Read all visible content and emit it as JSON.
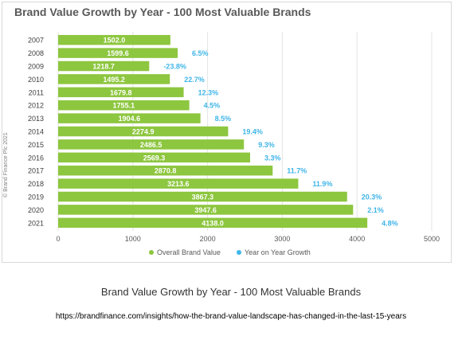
{
  "chart_data": {
    "type": "bar",
    "orientation": "horizontal",
    "title": "Brand Value Growth by Year - 100 Most Valuable Brands",
    "categories": [
      "2007",
      "2008",
      "2009",
      "2010",
      "2011",
      "2012",
      "2013",
      "2014",
      "2015",
      "2016",
      "2017",
      "2018",
      "2019",
      "2020",
      "2021"
    ],
    "series": [
      {
        "name": "Overall Brand Value",
        "color": "#8dc63f",
        "values": [
          1502.0,
          1599.6,
          1218.7,
          1495.2,
          1679.8,
          1755.1,
          1904.6,
          2274.9,
          2486.5,
          2569.3,
          2870.8,
          3213.6,
          3867.3,
          3947.6,
          4138.0
        ],
        "value_labels": [
          "1502.0",
          "1599.6",
          "1218.7",
          "1495.2",
          "1679.8",
          "1755.1",
          "1904.6",
          "2274.9",
          "2486.5",
          "2569.3",
          "2870.8",
          "3213.6",
          "3867.3",
          "3947.6",
          "4138.0"
        ]
      },
      {
        "name": "Year on Year Growth",
        "color": "#3fb5e8",
        "values": [
          null,
          6.5,
          -23.8,
          22.7,
          12.3,
          4.5,
          8.5,
          19.4,
          9.3,
          3.3,
          11.7,
          11.9,
          20.3,
          2.1,
          4.8
        ],
        "value_labels": [
          "",
          "6.5%",
          "-23.8%",
          "22.7%",
          "12.3%",
          "4.5%",
          "8.5%",
          "19.4%",
          "9.3%",
          "3.3%",
          "11.7%",
          "11.9%",
          "20.3%",
          "2.1%",
          "4.8%"
        ]
      }
    ],
    "x_ticks": [
      0,
      1000,
      2000,
      3000,
      4000,
      5000
    ],
    "x_tick_labels": [
      "0",
      "1000",
      "2000",
      "3000",
      "4000",
      "5000"
    ],
    "xlim": [
      0,
      5000
    ],
    "grid": true,
    "legend_position": "bottom"
  },
  "copyright": "© Brand Finance Plc 2021",
  "caption": "Brand Value Growth by Year - 100 Most Valuable Brands",
  "source_url": "https://brandfinance.com/insights/how-the-brand-value-landscape-has-changed-in-the-last-15-years"
}
